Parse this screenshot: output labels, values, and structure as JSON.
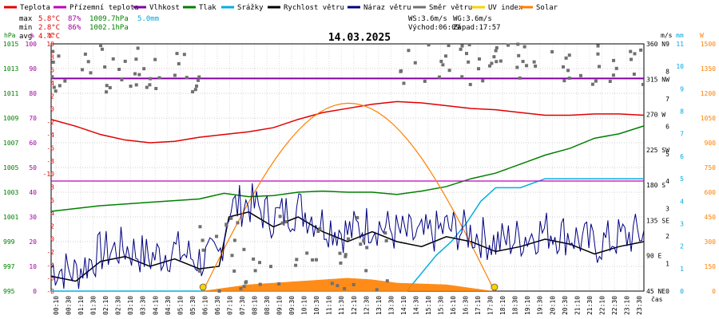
{
  "legend": [
    {
      "label": "Teplota",
      "color": "#e00000"
    },
    {
      "label": "Přízemní teplota",
      "color": "#c000c0"
    },
    {
      "label": "Vlhkost",
      "color": "#8000a0"
    },
    {
      "label": "Tlak",
      "color": "#008000"
    },
    {
      "label": "Srážky",
      "color": "#00b0e0"
    },
    {
      "label": "Rychlost větru",
      "color": "#000000"
    },
    {
      "label": "Náraz větru",
      "color": "#000080"
    },
    {
      "label": "Směr větru",
      "color": "#707070"
    },
    {
      "label": "UV index",
      "color": "#ffd000"
    },
    {
      "label": "Solar",
      "color": "#ff8000"
    }
  ],
  "stats": {
    "labels": [
      "max",
      "min",
      "avg"
    ],
    "temp_max": "5.8°C",
    "temp_min": "2.8°C",
    "temp_avg": "4.4°C",
    "hum_max": "87%",
    "hum_min": "86%",
    "press_max": "1009.7hPa",
    "press_min": "1002.1hPa",
    "rain_total": "5.0mm",
    "ws": "WS:3.6m/s",
    "wg": "WG:3.6m/s",
    "sunrise": "Východ:06:09",
    "sunset": "Západ:17:57"
  },
  "chart_data": {
    "type": "line",
    "title": "14.03.2025",
    "x_ticks": [
      "00:10",
      "00:30",
      "01:10",
      "01:30",
      "02:10",
      "02:30",
      "03:10",
      "03:30",
      "04:10",
      "04:30",
      "05:10",
      "05:30",
      "06:10",
      "06:30",
      "07:10",
      "07:30",
      "08:10",
      "08:30",
      "09:10",
      "09:30",
      "10:10",
      "10:30",
      "11:10",
      "11:30",
      "12:10",
      "12:30",
      "13:10",
      "13:30",
      "14:10",
      "14:30",
      "15:10",
      "15:30",
      "16:10",
      "16:30",
      "17:10",
      "17:30",
      "18:10",
      "18:30",
      "19:10",
      "19:30",
      "20:10",
      "20:30",
      "21:10",
      "21:30",
      "22:10",
      "22:30",
      "23:10",
      "23:30"
    ],
    "axes": {
      "time_label": "čas",
      "pressure": {
        "unit": "hPa",
        "ticks": [
          "1015",
          "1013",
          "1011",
          "1009",
          "1007",
          "1005",
          "1003",
          "1001",
          "999",
          "997",
          "995"
        ],
        "range": [
          995,
          1017
        ]
      },
      "humidity": {
        "unit": "%",
        "ticks": [
          "100",
          "90",
          "80",
          "70",
          "60",
          "50",
          "40",
          "30",
          "20",
          "10",
          "0"
        ],
        "range": [
          0,
          100
        ]
      },
      "temperature": {
        "unit": "°C",
        "ticks": [
          "10",
          "8",
          "6",
          "4",
          "2",
          "0",
          "-2",
          "-4",
          "-6",
          "-8",
          "-10",
          "8",
          "6",
          "4",
          "2",
          "0",
          "-2",
          "-4",
          "-6",
          "-8"
        ],
        "range": [
          -8,
          10
        ]
      },
      "wind_dir": {
        "ticks": [
          "360 N",
          "315 NW",
          "270 W",
          "225 SW",
          "180 S",
          "135 SE",
          "90 E",
          "45 NE"
        ],
        "range": [
          0,
          360
        ]
      },
      "wind": {
        "unit": "m/s",
        "ticks": [
          "9",
          "8",
          "7",
          "6",
          "5",
          "4",
          "3",
          "2",
          "1",
          "0"
        ],
        "range": [
          0,
          10
        ]
      },
      "rain": {
        "unit": "mm",
        "ticks": [
          "11",
          "10",
          "9",
          "8",
          "7",
          "6",
          "5",
          "4",
          "3",
          "2",
          "1",
          "0"
        ],
        "range": [
          0,
          11
        ]
      },
      "solar": {
        "unit": "W",
        "ticks": [
          "1500",
          "1350",
          "1200",
          "1050",
          "900",
          "750",
          "600",
          "450",
          "300",
          "150",
          "0"
        ],
        "range": [
          0,
          1500
        ]
      }
    },
    "series": [
      {
        "name": "Teplota",
        "color": "#e00000",
        "x": [
          0,
          1,
          2,
          3,
          4,
          5,
          6,
          7,
          8,
          9,
          10,
          11,
          12,
          13,
          14,
          15,
          16,
          17,
          18,
          19,
          20,
          21,
          22,
          23,
          24
        ],
        "values": [
          4.5,
          4.0,
          3.4,
          3.0,
          2.8,
          2.9,
          3.2,
          3.4,
          3.6,
          3.9,
          4.5,
          5.0,
          5.3,
          5.6,
          5.8,
          5.7,
          5.5,
          5.3,
          5.2,
          5.0,
          4.8,
          4.8,
          4.9,
          4.9,
          4.8
        ]
      },
      {
        "name": "Vlhkost",
        "color": "#8000a0",
        "x": [
          0,
          24
        ],
        "values": [
          86,
          86
        ]
      },
      {
        "name": "Tlak",
        "color": "#008000",
        "x": [
          0,
          2,
          4,
          6,
          7,
          8,
          9,
          10,
          11,
          12,
          13,
          14,
          15,
          16,
          17,
          18,
          19,
          20,
          21,
          22,
          23,
          24
        ],
        "values": [
          1002.1,
          1002.6,
          1002.9,
          1003.2,
          1003.7,
          1003.4,
          1003.5,
          1003.8,
          1003.9,
          1003.8,
          1003.8,
          1003.6,
          1003.9,
          1004.3,
          1005.0,
          1005.5,
          1006.3,
          1007.1,
          1007.7,
          1008.6,
          1009.0,
          1009.7
        ]
      },
      {
        "name": "Srážky",
        "color": "#00b0e0",
        "x": [
          0,
          14.4,
          15.0,
          15.6,
          16.2,
          16.8,
          17.4,
          18.0,
          19.0,
          20.0,
          24
        ],
        "values": [
          0,
          0,
          0.8,
          1.6,
          2.2,
          3.0,
          4.0,
          4.6,
          4.6,
          5.0,
          5.0
        ]
      },
      {
        "name": "Rychlost větru",
        "color": "#000000",
        "x": [
          0,
          1,
          2,
          3,
          4,
          5,
          6,
          6.8,
          7.2,
          8,
          9,
          10,
          11,
          12,
          13,
          14,
          15,
          16,
          17,
          18,
          19,
          20,
          21,
          22,
          23,
          24
        ],
        "values": [
          0.6,
          0.4,
          1.2,
          1.4,
          1.0,
          1.3,
          0.9,
          1.0,
          3.0,
          3.2,
          2.6,
          3.0,
          2.4,
          2.0,
          2.4,
          2.0,
          1.8,
          2.2,
          2.0,
          1.6,
          1.8,
          2.1,
          1.9,
          1.5,
          1.8,
          2.0
        ]
      },
      {
        "name": "Solar",
        "color": "#ff8000",
        "x": [
          6.1,
          8,
          10,
          12,
          13,
          14,
          16,
          17.9
        ],
        "values": [
          0,
          40,
          60,
          80,
          70,
          50,
          40,
          0
        ]
      },
      {
        "name": "Přízemní teplota",
        "color": "#c000c0",
        "x": [
          0,
          24
        ],
        "values": [
          0,
          0
        ]
      }
    ],
    "uv_index": {
      "name": "UV index",
      "color": "#ffd000",
      "x": [
        6.15,
        17.95
      ],
      "values": [
        0,
        0
      ]
    }
  }
}
